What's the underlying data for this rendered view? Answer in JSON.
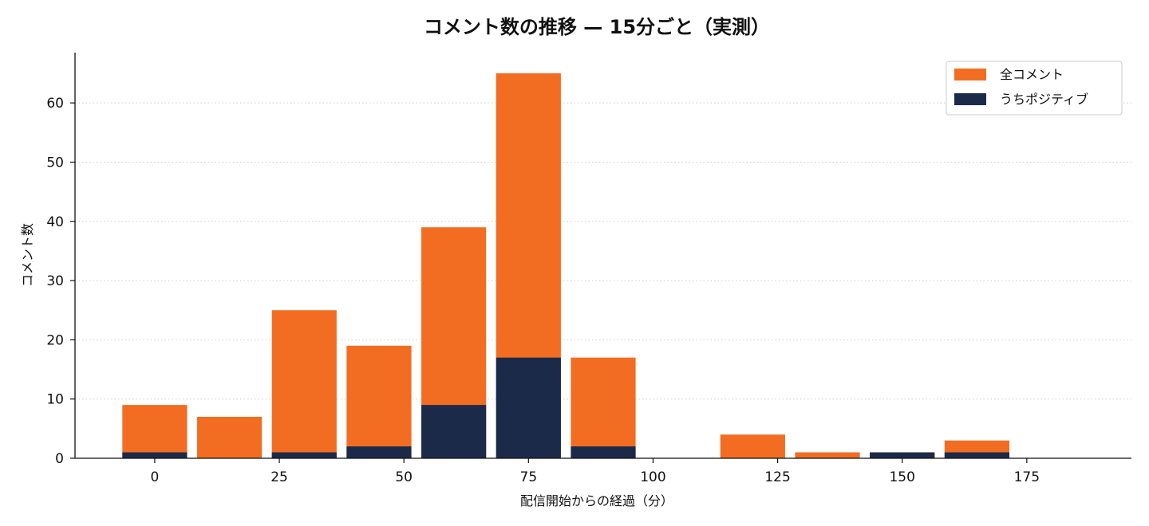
{
  "chart_data": {
    "type": "bar",
    "title": "コメント数の推移 — 15分ごと（実測）",
    "xlabel": "配信開始からの経過（分）",
    "ylabel": "コメント数",
    "x": [
      0,
      15,
      30,
      45,
      60,
      75,
      90,
      105,
      120,
      135,
      150,
      165
    ],
    "series": [
      {
        "name": "全コメント",
        "color": "#f26d21",
        "values": [
          9,
          7,
          25,
          19,
          39,
          65,
          17,
          0,
          4,
          1,
          1,
          3
        ]
      },
      {
        "name": "うちポジティブ",
        "color": "#1c2a4a",
        "values": [
          1,
          0,
          1,
          2,
          9,
          17,
          2,
          0,
          0,
          0,
          1,
          1
        ]
      }
    ],
    "bar_width": 13,
    "xlim": [
      -16,
      196
    ],
    "ylim": [
      0,
      68.5
    ],
    "xticks": [
      0,
      25,
      50,
      75,
      100,
      125,
      150,
      175
    ],
    "yticks": [
      0,
      10,
      20,
      30,
      40,
      50,
      60
    ],
    "grid": "y-dotted",
    "legend": "top-right"
  }
}
